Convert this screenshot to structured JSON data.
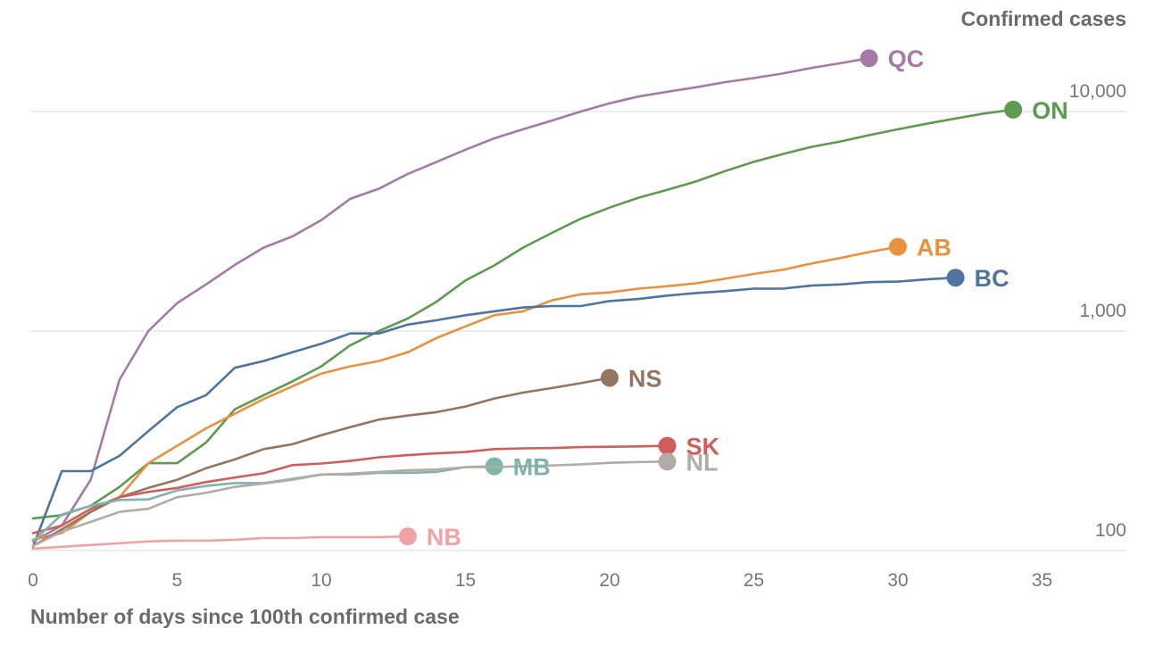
{
  "chart_data": {
    "type": "line",
    "xlabel": "Number of days since 100th confirmed case",
    "ylabel": "Confirmed cases",
    "yscale": "log",
    "xlim": [
      0,
      36
    ],
    "ylim": [
      100,
      20000
    ],
    "x_ticks": [
      "0",
      "5",
      "10",
      "15",
      "20",
      "25",
      "30",
      "35"
    ],
    "y_ticks": [
      {
        "value": 100,
        "label": "100"
      },
      {
        "value": 1000,
        "label": "1,000"
      },
      {
        "value": 10000,
        "label": "10,000"
      }
    ],
    "grid": true,
    "legend": "direct labels at line ends",
    "series": [
      {
        "name": "QC",
        "color": "#a57aa6",
        "x": [
          0,
          1,
          2,
          3,
          4,
          5,
          6,
          7,
          8,
          9,
          10,
          11,
          12,
          13,
          14,
          15,
          16,
          17,
          18,
          19,
          20,
          21,
          22,
          23,
          24,
          25,
          26,
          27,
          28,
          29
        ],
        "y": [
          110,
          130,
          210,
          600,
          1000,
          1340,
          1630,
          2000,
          2400,
          2700,
          3200,
          4000,
          4450,
          5200,
          5900,
          6700,
          7550,
          8300,
          9100,
          10000,
          10900,
          11700,
          12300,
          12900,
          13600,
          14200,
          14900,
          15800,
          16600,
          17500
        ]
      },
      {
        "name": "ON",
        "color": "#5f9a52",
        "x": [
          0,
          1,
          2,
          3,
          4,
          5,
          6,
          7,
          8,
          9,
          10,
          11,
          12,
          13,
          14,
          15,
          16,
          17,
          18,
          19,
          20,
          21,
          22,
          23,
          24,
          25,
          26,
          27,
          28,
          29,
          30,
          31,
          32,
          33,
          34
        ],
        "y": [
          140,
          145,
          160,
          195,
          250,
          250,
          310,
          440,
          510,
          590,
          690,
          860,
          1000,
          1140,
          1360,
          1700,
          1990,
          2400,
          2800,
          3250,
          3650,
          4050,
          4400,
          4800,
          5350,
          5900,
          6400,
          6900,
          7300,
          7800,
          8300,
          8800,
          9300,
          9800,
          10200
        ]
      },
      {
        "name": "AB",
        "color": "#e8913f",
        "x": [
          0,
          1,
          2,
          3,
          4,
          5,
          6,
          7,
          8,
          9,
          10,
          11,
          12,
          13,
          14,
          15,
          16,
          17,
          18,
          19,
          20,
          21,
          22,
          23,
          24,
          25,
          26,
          27,
          28,
          29,
          30
        ],
        "y": [
          112,
          120,
          150,
          175,
          250,
          300,
          360,
          420,
          490,
          560,
          640,
          690,
          730,
          800,
          930,
          1050,
          1180,
          1230,
          1380,
          1470,
          1500,
          1560,
          1600,
          1650,
          1730,
          1820,
          1900,
          2030,
          2150,
          2290,
          2420
        ]
      },
      {
        "name": "BC",
        "color": "#4f74a0",
        "x": [
          0,
          1,
          2,
          3,
          4,
          5,
          6,
          7,
          8,
          9,
          10,
          11,
          12,
          13,
          14,
          15,
          16,
          17,
          18,
          19,
          20,
          21,
          22,
          23,
          24,
          25,
          26,
          27,
          28,
          29,
          30,
          31,
          32
        ],
        "y": [
          104,
          230,
          230,
          270,
          350,
          450,
          510,
          680,
          730,
          800,
          875,
          975,
          975,
          1070,
          1120,
          1180,
          1230,
          1280,
          1300,
          1300,
          1370,
          1400,
          1450,
          1490,
          1520,
          1560,
          1560,
          1610,
          1630,
          1670,
          1680,
          1720,
          1750
        ]
      },
      {
        "name": "NS",
        "color": "#957460",
        "x": [
          0,
          1,
          2,
          3,
          4,
          5,
          6,
          7,
          8,
          9,
          10,
          11,
          12,
          13,
          14,
          15,
          16,
          17,
          18,
          19,
          20
        ],
        "y": [
          105,
          125,
          150,
          175,
          193,
          210,
          237,
          260,
          290,
          305,
          335,
          365,
          395,
          412,
          427,
          453,
          493,
          524,
          550,
          579,
          612
        ]
      },
      {
        "name": "SK",
        "color": "#d15e5d",
        "x": [
          0,
          1,
          2,
          3,
          4,
          5,
          6,
          7,
          8,
          9,
          10,
          11,
          12,
          13,
          14,
          15,
          16,
          17,
          18,
          19,
          20,
          21,
          22
        ],
        "y": [
          120,
          130,
          155,
          175,
          185,
          193,
          205,
          215,
          225,
          245,
          249,
          256,
          266,
          272,
          277,
          281,
          290,
          292,
          293,
          296,
          297,
          298,
          300
        ]
      },
      {
        "name": "MB",
        "color": "#7fb3ae",
        "x": [
          0,
          1,
          2,
          3,
          4,
          5,
          6,
          7,
          8,
          9,
          10,
          11,
          12,
          13,
          14,
          15,
          16
        ],
        "y": [
          110,
          146,
          160,
          170,
          171,
          188,
          197,
          203,
          203,
          212,
          222,
          222,
          226,
          226,
          228,
          240,
          242
        ]
      },
      {
        "name": "NL",
        "color": "#b3aca6",
        "x": [
          0,
          1,
          2,
          3,
          4,
          5,
          6,
          7,
          8,
          9,
          10,
          11,
          12,
          13,
          14,
          15,
          16,
          17,
          18,
          19,
          20,
          21,
          22
        ],
        "y": [
          105,
          122,
          135,
          150,
          155,
          175,
          183,
          195,
          202,
          210,
          222,
          224,
          228,
          232,
          234,
          240,
          240,
          242,
          244,
          247,
          251,
          253,
          254
        ]
      },
      {
        "name": "NB",
        "color": "#f2a2a6",
        "x": [
          0,
          1,
          2,
          3,
          4,
          5,
          6,
          7,
          8,
          9,
          10,
          11,
          12,
          13
        ],
        "y": [
          102,
          104,
          106,
          108,
          110,
          111,
          111,
          112,
          114,
          114,
          115,
          115,
          115,
          116
        ]
      }
    ]
  }
}
